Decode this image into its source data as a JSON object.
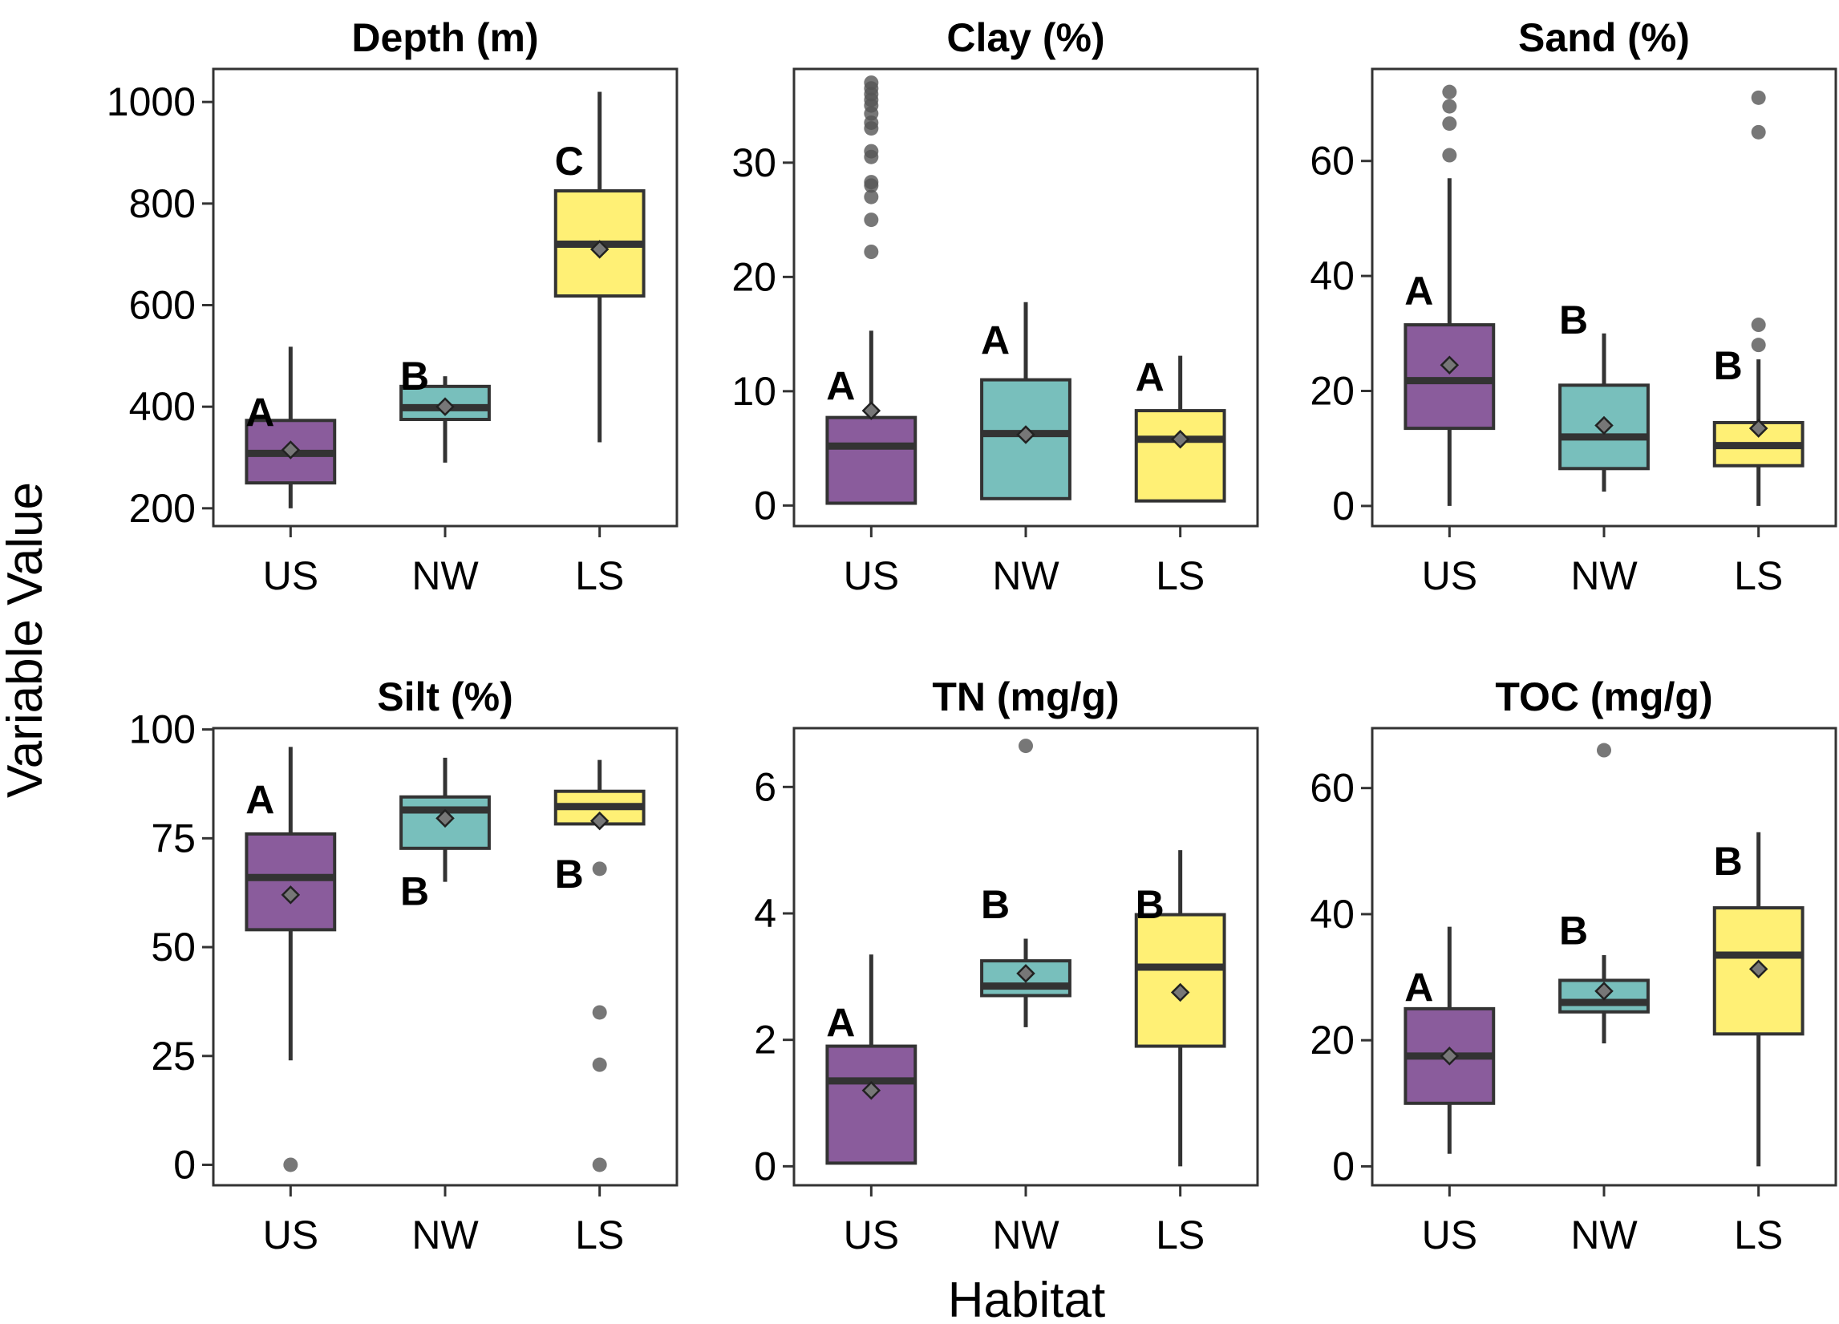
{
  "figure": {
    "xlabel": "Habitat",
    "ylabel": "Variable Value"
  },
  "colors": {
    "US": "#8a5c9c",
    "NW": "#78bfbc",
    "LS": "#fff075",
    "outline": "#333333",
    "outlier": "#555555",
    "mean_marker": "#777777"
  },
  "chart_data": [
    {
      "type": "boxplot",
      "title": "Depth (m)",
      "categories": [
        "US",
        "NW",
        "LS"
      ],
      "ylim": [
        165,
        1065
      ],
      "yticks": [
        200,
        400,
        600,
        800,
        1000
      ],
      "boxes": [
        {
          "cat": "US",
          "whisker_low": 200,
          "q1": 250,
          "median": 308,
          "q3": 373,
          "whisker_high": 518,
          "mean": 315,
          "letter": "A",
          "letter_y": 390,
          "outliers": []
        },
        {
          "cat": "NW",
          "whisker_low": 290,
          "q1": 375,
          "median": 398,
          "q3": 440,
          "whisker_high": 460,
          "mean": 400,
          "letter": "B",
          "letter_y": 462,
          "outliers": []
        },
        {
          "cat": "LS",
          "whisker_low": 330,
          "q1": 618,
          "median": 720,
          "q3": 825,
          "whisker_high": 1020,
          "mean": 710,
          "letter": "C",
          "letter_y": 885,
          "outliers": []
        }
      ]
    },
    {
      "type": "boxplot",
      "title": "Clay (%)",
      "categories": [
        "US",
        "NW",
        "LS"
      ],
      "ylim": [
        -1.8,
        38.2
      ],
      "yticks": [
        0,
        10,
        20,
        30
      ],
      "boxes": [
        {
          "cat": "US",
          "whisker_low": 0.2,
          "q1": 0.2,
          "median": 5.2,
          "q3": 7.7,
          "whisker_high": 15.3,
          "mean": 8.3,
          "letter": "A",
          "letter_y": 10.5,
          "outliers": [
            22.2,
            25,
            27,
            28,
            28.3,
            30.5,
            31,
            33,
            33.5,
            34.3,
            35,
            35.5,
            36,
            36.5,
            37
          ]
        },
        {
          "cat": "NW",
          "whisker_low": 0.6,
          "q1": 0.6,
          "median": 6.3,
          "q3": 11,
          "whisker_high": 17.8,
          "mean": 6.2,
          "letter": "A",
          "letter_y": 14.5,
          "outliers": []
        },
        {
          "cat": "LS",
          "whisker_low": 0.4,
          "q1": 0.4,
          "median": 5.8,
          "q3": 8.3,
          "whisker_high": 13.1,
          "mean": 5.8,
          "letter": "A",
          "letter_y": 11.3,
          "outliers": []
        }
      ]
    },
    {
      "type": "boxplot",
      "title": "Sand (%)",
      "categories": [
        "US",
        "NW",
        "LS"
      ],
      "ylim": [
        -3.5,
        76
      ],
      "yticks": [
        0,
        20,
        40,
        60
      ],
      "boxes": [
        {
          "cat": "US",
          "whisker_low": 0,
          "q1": 13.5,
          "median": 21.8,
          "q3": 31.5,
          "whisker_high": 57,
          "mean": 24.5,
          "letter": "A",
          "letter_y": 37.5,
          "outliers": [
            61,
            66.5,
            69.5,
            72
          ]
        },
        {
          "cat": "NW",
          "whisker_low": 2.5,
          "q1": 6.5,
          "median": 12,
          "q3": 21,
          "whisker_high": 30,
          "mean": 14,
          "letter": "B",
          "letter_y": 32.5,
          "outliers": []
        },
        {
          "cat": "LS",
          "whisker_low": 0,
          "q1": 7,
          "median": 10.5,
          "q3": 14.5,
          "whisker_high": 25.5,
          "mean": 13.5,
          "letter": "B",
          "letter_y": 24.5,
          "outliers": [
            28,
            31.5,
            65,
            71
          ]
        }
      ]
    },
    {
      "type": "boxplot",
      "title": "Silt (%)",
      "categories": [
        "US",
        "NW",
        "LS"
      ],
      "ylim": [
        -4.7,
        100.3
      ],
      "yticks": [
        0,
        25,
        50,
        75,
        100
      ],
      "boxes": [
        {
          "cat": "US",
          "whisker_low": 24,
          "q1": 54,
          "median": 66,
          "q3": 76,
          "whisker_high": 96,
          "mean": 62,
          "letter": "A",
          "letter_y": 84,
          "outliers": [
            0
          ]
        },
        {
          "cat": "NW",
          "whisker_low": 65,
          "q1": 72.7,
          "median": 81.5,
          "q3": 84.5,
          "whisker_high": 93.5,
          "mean": 79.6,
          "letter": "B",
          "letter_y": 63,
          "outliers": []
        },
        {
          "cat": "LS",
          "whisker_low": 78.3,
          "q1": 78.3,
          "median": 82.3,
          "q3": 85.8,
          "whisker_high": 93,
          "mean": 79,
          "letter": "B",
          "letter_y": 67,
          "outliers": [
            0,
            23,
            35,
            68
          ]
        }
      ]
    },
    {
      "type": "boxplot",
      "title": "TN (mg/g)",
      "categories": [
        "US",
        "NW",
        "LS"
      ],
      "ylim": [
        -0.3,
        6.93
      ],
      "yticks": [
        0,
        2,
        4,
        6
      ],
      "boxes": [
        {
          "cat": "US",
          "whisker_low": 0.05,
          "q1": 0.05,
          "median": 1.35,
          "q3": 1.9,
          "whisker_high": 3.35,
          "mean": 1.2,
          "letter": "A",
          "letter_y": 2.28,
          "outliers": []
        },
        {
          "cat": "NW",
          "whisker_low": 2.2,
          "q1": 2.7,
          "median": 2.85,
          "q3": 3.25,
          "whisker_high": 3.6,
          "mean": 3.05,
          "letter": "B",
          "letter_y": 4.15,
          "outliers": [
            6.65
          ]
        },
        {
          "cat": "LS",
          "whisker_low": 0,
          "q1": 1.9,
          "median": 3.15,
          "q3": 3.98,
          "whisker_high": 5.0,
          "mean": 2.75,
          "letter": "B",
          "letter_y": 4.15,
          "outliers": []
        }
      ]
    },
    {
      "type": "boxplot",
      "title": "TOC (mg/g)",
      "categories": [
        "US",
        "NW",
        "LS"
      ],
      "ylim": [
        -3,
        69.5
      ],
      "yticks": [
        0,
        20,
        40,
        60
      ],
      "boxes": [
        {
          "cat": "US",
          "whisker_low": 2,
          "q1": 10,
          "median": 17.5,
          "q3": 25,
          "whisker_high": 38,
          "mean": 17.5,
          "letter": "A",
          "letter_y": 28.5,
          "outliers": []
        },
        {
          "cat": "NW",
          "whisker_low": 19.5,
          "q1": 24.5,
          "median": 26,
          "q3": 29.5,
          "whisker_high": 33.5,
          "mean": 27.8,
          "letter": "B",
          "letter_y": 37.5,
          "outliers": [
            66
          ]
        },
        {
          "cat": "LS",
          "whisker_low": 0,
          "q1": 21,
          "median": 33.5,
          "q3": 41,
          "whisker_high": 53,
          "mean": 31.3,
          "letter": "B",
          "letter_y": 48.5,
          "outliers": []
        }
      ]
    }
  ]
}
